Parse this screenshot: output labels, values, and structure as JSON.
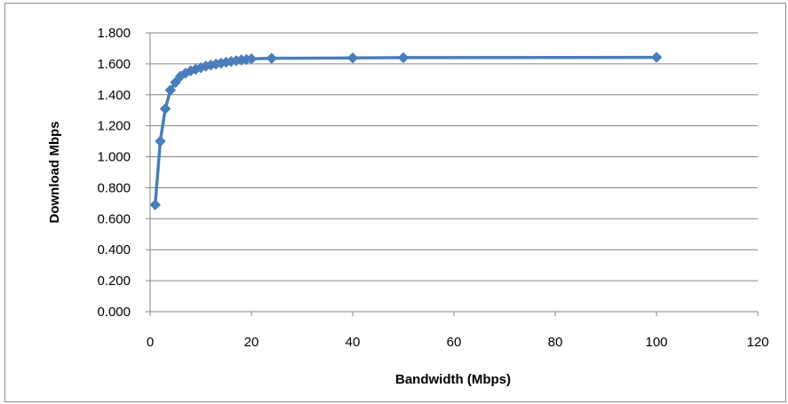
{
  "chart_data": {
    "type": "line",
    "title": "",
    "xlabel": "Bandwidth (Mbps)",
    "ylabel": "Download Mbps",
    "xlim": [
      0,
      120
    ],
    "ylim": [
      0,
      1.8
    ],
    "x_ticks": [
      "0",
      "20",
      "40",
      "60",
      "80",
      "100",
      "120"
    ],
    "y_ticks": [
      "0.000",
      "0.200",
      "0.400",
      "0.600",
      "0.800",
      "1.000",
      "1.200",
      "1.400",
      "1.600",
      "1.800"
    ],
    "grid": "horizontal",
    "legend": "none",
    "series": [
      {
        "color": "#4a7ebb",
        "marker": "diamond",
        "x": [
          1,
          2,
          3,
          4,
          5,
          6,
          7,
          8,
          9,
          10,
          11,
          12,
          13,
          14,
          15,
          16,
          17,
          18,
          19,
          20,
          24,
          40,
          50,
          100
        ],
        "y": [
          0.69,
          1.1,
          1.31,
          1.43,
          1.48,
          1.52,
          1.54,
          1.555,
          1.565,
          1.575,
          1.585,
          1.592,
          1.598,
          1.604,
          1.61,
          1.615,
          1.62,
          1.625,
          1.628,
          1.632,
          1.636,
          1.638,
          1.64,
          1.642
        ]
      }
    ]
  }
}
